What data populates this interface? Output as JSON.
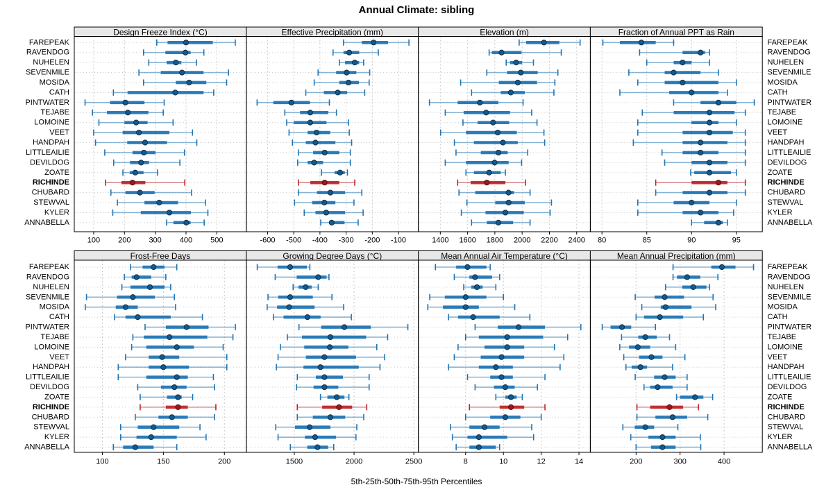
{
  "title": "Annual Climate: sibling",
  "caption": "5th-25th-50th-75th-95th Percentiles",
  "style": {
    "blue": "#1f74b4",
    "blue_dot": "#135a8c",
    "blue_dot_edge": "#0b2f4d",
    "red": "#bd2428",
    "red_dot": "#9b181c",
    "red_dot_edge": "#5e0f12",
    "header_bg": "#e8e8e8",
    "grid": "#c8c8c8",
    "border": "#000000",
    "text": "#000000"
  },
  "chart_data": {
    "type": "dotplot-percentiles",
    "percentiles": [
      5,
      25,
      50,
      75,
      95
    ],
    "layout": "2 rows x 4 columns, site labels on both sides",
    "highlight_site": "RICHINDE",
    "sites": [
      "FAREPEAK",
      "RAVENDOG",
      "NUHELEN",
      "SEVENMILE",
      "MOSIDA",
      "CATH",
      "PINTWATER",
      "TEJABE",
      "LOMOINE",
      "VEET",
      "HANDPAH",
      "LITTLEAILIE",
      "DEVILDOG",
      "ZOATE",
      "RICHINDE",
      "CHUBARD",
      "STEWVAL",
      "KYLER",
      "ANNABELLA"
    ],
    "panels": [
      {
        "title": "Design Freeze Index (°C)",
        "xlim": [
          37,
          596
        ],
        "ticks": [
          100,
          200,
          300,
          400,
          500
        ],
        "series": [
          [
            305,
            340,
            400,
            487,
            560
          ],
          [
            262,
            333,
            398,
            415,
            458
          ],
          [
            279,
            337,
            367,
            385,
            434
          ],
          [
            247,
            318,
            387,
            457,
            538
          ],
          [
            262,
            367,
            410,
            466,
            532
          ],
          [
            164,
            210,
            365,
            457,
            490
          ],
          [
            72,
            153,
            203,
            265,
            329
          ],
          [
            96,
            143,
            211,
            278,
            326
          ],
          [
            117,
            200,
            238,
            275,
            358
          ],
          [
            100,
            194,
            247,
            346,
            421
          ],
          [
            106,
            209,
            267,
            338,
            435
          ],
          [
            136,
            226,
            263,
            301,
            395
          ],
          [
            165,
            218,
            254,
            280,
            380
          ],
          [
            195,
            217,
            235,
            262,
            307
          ],
          [
            138,
            190,
            226,
            268,
            396
          ],
          [
            156,
            203,
            250,
            298,
            418
          ],
          [
            177,
            265,
            313,
            374,
            463
          ],
          [
            162,
            253,
            346,
            416,
            471
          ],
          [
            337,
            359,
            401,
            415,
            459
          ]
        ]
      },
      {
        "title": "Effective Precipitation (mm)",
        "xlim": [
          -681,
          -24
        ],
        "ticks": [
          -600,
          -500,
          -400,
          -300,
          -200,
          -100
        ],
        "series": [
          [
            -310,
            -240,
            -195,
            -140,
            -60
          ],
          [
            -350,
            -310,
            -288,
            -250,
            -177
          ],
          [
            -326,
            -304,
            -267,
            -250,
            -233
          ],
          [
            -407,
            -338,
            -298,
            -261,
            -210
          ],
          [
            -422,
            -326,
            -291,
            -251,
            -212
          ],
          [
            -454,
            -385,
            -332,
            -296,
            -229
          ],
          [
            -640,
            -578,
            -509,
            -438,
            -364
          ],
          [
            -534,
            -476,
            -437,
            -368,
            -337
          ],
          [
            -527,
            -500,
            -437,
            -375,
            -291
          ],
          [
            -518,
            -447,
            -413,
            -361,
            -288
          ],
          [
            -505,
            -454,
            -417,
            -341,
            -279
          ],
          [
            -482,
            -426,
            -382,
            -326,
            -284
          ],
          [
            -485,
            -447,
            -422,
            -388,
            -284
          ],
          [
            -394,
            -344,
            -323,
            -305,
            -295
          ],
          [
            -482,
            -437,
            -382,
            -326,
            -267
          ],
          [
            -482,
            -411,
            -360,
            -304,
            -240
          ],
          [
            -497,
            -430,
            -383,
            -341,
            -270
          ],
          [
            -460,
            -417,
            -376,
            -304,
            -235
          ],
          [
            -397,
            -365,
            -355,
            -306,
            -254
          ]
        ]
      },
      {
        "title": "Elevation (m)",
        "xlim": [
          1239,
          2500
        ],
        "ticks": [
          1400,
          1600,
          1800,
          2000,
          2200,
          2400
        ],
        "series": [
          [
            1978,
            2029,
            2160,
            2273,
            2425
          ],
          [
            1758,
            1778,
            1849,
            1995,
            2287
          ],
          [
            1883,
            1911,
            1956,
            2000,
            2083
          ],
          [
            1741,
            1889,
            1990,
            2114,
            2262
          ],
          [
            1549,
            1829,
            1968,
            2109,
            2240
          ],
          [
            1629,
            1843,
            1917,
            2019,
            2233
          ],
          [
            1320,
            1527,
            1690,
            1826,
            2007
          ],
          [
            1436,
            1571,
            1736,
            1911,
            2070
          ],
          [
            1566,
            1673,
            1787,
            1905,
            2109
          ],
          [
            1402,
            1588,
            1821,
            1961,
            2160
          ],
          [
            1503,
            1646,
            1859,
            1968,
            2165
          ],
          [
            1515,
            1697,
            1826,
            1894,
            2041
          ],
          [
            1436,
            1588,
            1798,
            1901,
            1996
          ],
          [
            1588,
            1646,
            1758,
            1843,
            1877
          ],
          [
            1527,
            1622,
            1741,
            1877,
            2024
          ],
          [
            1537,
            1656,
            1900,
            1940,
            2058
          ],
          [
            1595,
            1803,
            1901,
            2019,
            2215
          ],
          [
            1554,
            1731,
            1877,
            2012,
            2205
          ],
          [
            1629,
            1741,
            1826,
            1934,
            2058
          ]
        ]
      },
      {
        "title": "Fraction of Annual PPT as Rain",
        "xlim": [
          78.7,
          97.9
        ],
        "ticks": [
          80,
          85,
          90,
          95
        ],
        "series": [
          [
            80.1,
            82,
            84.4,
            86,
            88
          ],
          [
            84.2,
            89,
            91,
            91.5,
            92
          ],
          [
            85,
            88,
            89,
            90,
            92
          ],
          [
            83,
            87,
            88,
            91,
            93
          ],
          [
            84,
            87,
            89,
            93,
            95
          ],
          [
            82,
            87.5,
            90,
            93,
            94
          ],
          [
            88,
            91,
            93,
            95,
            97
          ],
          [
            84.5,
            88,
            92,
            94.8,
            96
          ],
          [
            84,
            90,
            92,
            93,
            95
          ],
          [
            84,
            89,
            92,
            94.6,
            96
          ],
          [
            83.5,
            89,
            91,
            94,
            96
          ],
          [
            86.7,
            89,
            91,
            93,
            96
          ],
          [
            87,
            90,
            92,
            94,
            96
          ],
          [
            89.9,
            90.3,
            92,
            94.4,
            95
          ],
          [
            86,
            90,
            93,
            94,
            96
          ],
          [
            86,
            89,
            92,
            94,
            96
          ],
          [
            84,
            88,
            90,
            92,
            95
          ],
          [
            84,
            89,
            91,
            93,
            94.7
          ],
          [
            90,
            91.4,
            93,
            93.5,
            94
          ]
        ]
      },
      {
        "title": "Frost-Free Days",
        "xlim": [
          77,
          218
        ],
        "ticks": [
          100,
          150,
          200
        ],
        "series": [
          [
            123,
            133,
            142,
            151,
            161
          ],
          [
            118,
            124,
            128,
            140,
            152
          ],
          [
            116,
            123,
            139,
            151,
            156
          ],
          [
            87,
            112,
            125,
            143,
            159
          ],
          [
            86,
            111,
            119,
            129,
            160
          ],
          [
            110,
            119,
            129,
            156,
            182
          ],
          [
            135,
            152,
            169,
            187,
            209
          ],
          [
            125,
            134,
            155,
            186,
            207
          ],
          [
            124,
            136,
            161,
            175,
            199
          ],
          [
            119,
            138,
            149,
            163,
            202
          ],
          [
            113,
            138,
            150,
            171,
            202
          ],
          [
            113,
            136,
            161,
            170,
            191
          ],
          [
            129,
            148,
            159,
            169,
            192
          ],
          [
            131,
            153,
            162,
            165,
            174
          ],
          [
            131,
            152,
            162,
            170,
            193
          ],
          [
            127,
            146,
            157,
            170,
            192
          ],
          [
            115,
            129,
            142,
            163,
            180
          ],
          [
            115,
            128,
            140,
            161,
            185
          ],
          [
            109,
            117,
            127,
            142,
            161
          ]
        ]
      },
      {
        "title": "Growing Degree Days (°C)",
        "xlim": [
          1099,
          2538
        ],
        "ticks": [
          1500,
          2000,
          2500
        ],
        "series": [
          [
            1190,
            1360,
            1465,
            1605,
            1630
          ],
          [
            1340,
            1520,
            1700,
            1770,
            1790
          ],
          [
            1490,
            1535,
            1595,
            1645,
            1700
          ],
          [
            1280,
            1365,
            1465,
            1655,
            1815
          ],
          [
            1273,
            1356,
            1457,
            1670,
            1913
          ],
          [
            1326,
            1410,
            1610,
            1720,
            1977
          ],
          [
            1539,
            1725,
            1919,
            2140,
            2450
          ],
          [
            1442,
            1564,
            1802,
            2101,
            2281
          ],
          [
            1384,
            1583,
            1797,
            1952,
            2190
          ],
          [
            1364,
            1597,
            1752,
            2016,
            2256
          ],
          [
            1350,
            1577,
            1719,
            2039,
            2217
          ],
          [
            1525,
            1680,
            1752,
            1907,
            2126
          ],
          [
            1519,
            1661,
            1752,
            1868,
            2126
          ],
          [
            1719,
            1777,
            1855,
            1919,
            1957
          ],
          [
            1525,
            1733,
            1874,
            1984,
            2106
          ],
          [
            1525,
            1655,
            1802,
            1926,
            2081
          ],
          [
            1345,
            1506,
            1628,
            1802,
            2023
          ],
          [
            1364,
            1589,
            1674,
            1849,
            2016
          ],
          [
            1467,
            1609,
            1694,
            1783,
            1830
          ]
        ]
      },
      {
        "title": "Mean Annual Air Temperature (°C)",
        "xlim": [
          5.5,
          14.6
        ],
        "ticks": [
          8,
          10,
          12,
          14
        ],
        "series": [
          [
            6.4,
            7.5,
            8.1,
            9.1,
            9.3
          ],
          [
            7.4,
            8.2,
            8.5,
            9.4,
            9.8
          ],
          [
            7.9,
            8.3,
            8.6,
            8.9,
            9.6
          ],
          [
            6.1,
            6.9,
            8.0,
            9.1,
            10.0
          ],
          [
            6.0,
            6.8,
            8.0,
            8.7,
            10.6
          ],
          [
            7.1,
            7.6,
            8.4,
            9.8,
            11.4
          ],
          [
            8.5,
            9.7,
            10.8,
            12.2,
            14.1
          ],
          [
            8.0,
            8.7,
            10.2,
            12.1,
            13.4
          ],
          [
            7.6,
            9.0,
            10.2,
            11.1,
            12.7
          ],
          [
            7.4,
            8.8,
            9.9,
            11.1,
            13.2
          ],
          [
            7.1,
            8.7,
            9.6,
            10.5,
            13.0
          ],
          [
            8.1,
            9.3,
            9.9,
            10.5,
            12.2
          ],
          [
            8.5,
            9.5,
            10.1,
            10.6,
            11.8
          ],
          [
            9.6,
            10.1,
            10.4,
            10.7,
            11.0
          ],
          [
            8.2,
            9.8,
            10.4,
            11.1,
            12.2
          ],
          [
            8.0,
            9.3,
            10.1,
            10.9,
            12.0
          ],
          [
            7.2,
            8.2,
            9.0,
            9.8,
            11.5
          ],
          [
            7.3,
            8.1,
            8.7,
            10.2,
            11.6
          ],
          [
            7.5,
            8.2,
            8.7,
            9.6,
            9.8
          ]
        ]
      },
      {
        "title": "Mean Annual Precipitation (mm)",
        "xlim": [
          96,
          487
        ],
        "ticks": [
          200,
          300,
          400
        ],
        "series": [
          [
            284,
            371,
            395,
            426,
            467
          ],
          [
            284,
            293,
            316,
            346,
            386
          ],
          [
            267,
            305,
            330,
            360,
            367
          ],
          [
            198,
            242,
            265,
            309,
            375
          ],
          [
            213,
            256,
            267,
            326,
            381
          ],
          [
            200,
            218,
            254,
            307,
            353
          ],
          [
            123,
            142,
            168,
            189,
            244
          ],
          [
            167,
            205,
            221,
            247,
            276
          ],
          [
            163,
            184,
            204,
            232,
            290
          ],
          [
            172,
            207,
            235,
            260,
            311
          ],
          [
            177,
            190,
            210,
            225,
            283
          ],
          [
            198,
            241,
            265,
            290,
            316
          ],
          [
            218,
            232,
            249,
            283,
            316
          ],
          [
            292,
            300,
            334,
            353,
            374
          ],
          [
            202,
            232,
            276,
            307,
            342
          ],
          [
            202,
            244,
            283,
            316,
            363
          ],
          [
            170,
            197,
            221,
            241,
            295
          ],
          [
            188,
            228,
            260,
            290,
            346
          ],
          [
            200,
            234,
            260,
            290,
            347
          ]
        ]
      }
    ]
  }
}
